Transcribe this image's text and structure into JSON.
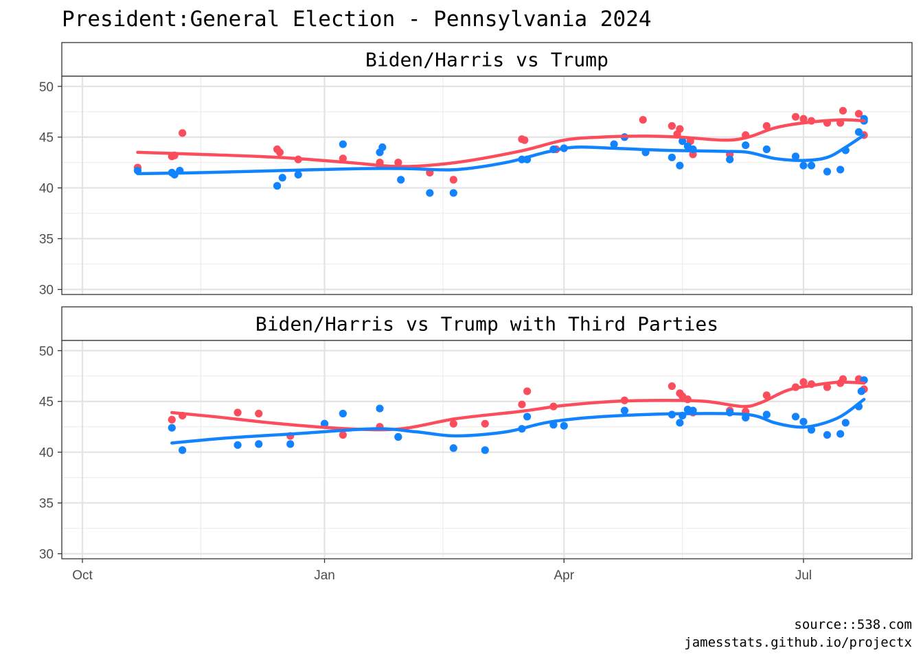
{
  "title": "President:General Election - Pennsylvania 2024",
  "caption": {
    "line1": "source::538.com",
    "line2": "jamesstats.github.io/projectx"
  },
  "colors": {
    "trump": "#fb4d5c",
    "biden_harris": "#1283ff"
  },
  "chart_data": [
    {
      "type": "scatter",
      "panel_title": "Biden/Harris vs Trump",
      "x_axis": {
        "type": "date",
        "ticks": [
          "Oct",
          "Jan",
          "Apr",
          "Jul"
        ]
      },
      "ylim": [
        29.5,
        51
      ],
      "yticks": [
        30,
        35,
        40,
        45,
        50
      ],
      "grid": true,
      "smooth_trend_lines": true,
      "series": [
        {
          "color": "#fb4d5c",
          "points": [
            [
              "2023-10-22",
              42.0
            ],
            [
              "2023-11-04",
              43.1
            ],
            [
              "2023-11-05",
              43.2
            ],
            [
              "2023-11-08",
              45.4
            ],
            [
              "2023-12-14",
              43.8
            ],
            [
              "2023-12-15",
              43.5
            ],
            [
              "2023-12-22",
              42.8
            ],
            [
              "2024-01-08",
              42.9
            ],
            [
              "2024-01-22",
              42.5
            ],
            [
              "2024-01-22",
              42.2
            ],
            [
              "2024-01-29",
              42.5
            ],
            [
              "2024-02-10",
              41.5
            ],
            [
              "2024-02-19",
              40.8
            ],
            [
              "2024-03-16",
              44.8
            ],
            [
              "2024-03-17",
              44.7
            ],
            [
              "2024-03-29",
              43.8
            ],
            [
              "2024-05-01",
              46.7
            ],
            [
              "2024-05-12",
              46.1
            ],
            [
              "2024-05-14",
              45.3
            ],
            [
              "2024-05-15",
              45.8
            ],
            [
              "2024-05-19",
              44.6
            ],
            [
              "2024-05-20",
              43.3
            ],
            [
              "2024-06-03",
              43.3
            ],
            [
              "2024-06-09",
              45.2
            ],
            [
              "2024-06-17",
              46.1
            ],
            [
              "2024-06-28",
              47.0
            ],
            [
              "2024-07-01",
              46.8
            ],
            [
              "2024-07-04",
              46.6
            ],
            [
              "2024-07-10",
              46.4
            ],
            [
              "2024-07-15",
              46.4
            ],
            [
              "2024-07-16",
              47.6
            ],
            [
              "2024-07-22",
              47.3
            ],
            [
              "2024-07-24",
              45.2
            ]
          ],
          "trend": [
            [
              "2023-10-22",
              43.5
            ],
            [
              "2023-11-15",
              43.3
            ],
            [
              "2023-12-15",
              43.0
            ],
            [
              "2024-01-10",
              42.5
            ],
            [
              "2024-01-30",
              42.1
            ],
            [
              "2024-02-20",
              42.5
            ],
            [
              "2024-03-15",
              43.6
            ],
            [
              "2024-04-01",
              44.7
            ],
            [
              "2024-04-15",
              45.0
            ],
            [
              "2024-05-01",
              45.1
            ],
            [
              "2024-05-15",
              45.0
            ],
            [
              "2024-06-01",
              44.7
            ],
            [
              "2024-06-10",
              45.0
            ],
            [
              "2024-06-20",
              45.9
            ],
            [
              "2024-07-01",
              46.4
            ],
            [
              "2024-07-15",
              46.7
            ],
            [
              "2024-07-24",
              46.6
            ]
          ]
        },
        {
          "color": "#1283ff",
          "points": [
            [
              "2023-10-22",
              41.7
            ],
            [
              "2023-11-04",
              41.5
            ],
            [
              "2023-11-05",
              41.3
            ],
            [
              "2023-11-07",
              41.7
            ],
            [
              "2023-12-14",
              40.2
            ],
            [
              "2023-12-16",
              41.0
            ],
            [
              "2023-12-22",
              41.3
            ],
            [
              "2024-01-08",
              44.3
            ],
            [
              "2024-01-22",
              43.5
            ],
            [
              "2024-01-23",
              44.0
            ],
            [
              "2024-01-30",
              40.8
            ],
            [
              "2024-02-10",
              39.5
            ],
            [
              "2024-02-19",
              39.5
            ],
            [
              "2024-03-16",
              42.8
            ],
            [
              "2024-03-18",
              42.8
            ],
            [
              "2024-03-28",
              43.8
            ],
            [
              "2024-04-01",
              43.9
            ],
            [
              "2024-04-20",
              44.3
            ],
            [
              "2024-04-24",
              45.0
            ],
            [
              "2024-05-02",
              43.5
            ],
            [
              "2024-05-12",
              43.0
            ],
            [
              "2024-05-15",
              42.2
            ],
            [
              "2024-05-16",
              44.6
            ],
            [
              "2024-05-18",
              44.1
            ],
            [
              "2024-05-20",
              43.8
            ],
            [
              "2024-06-03",
              42.8
            ],
            [
              "2024-06-09",
              44.2
            ],
            [
              "2024-06-17",
              43.8
            ],
            [
              "2024-06-28",
              43.1
            ],
            [
              "2024-07-01",
              42.2
            ],
            [
              "2024-07-04",
              42.2
            ],
            [
              "2024-07-10",
              41.6
            ],
            [
              "2024-07-15",
              41.8
            ],
            [
              "2024-07-17",
              43.7
            ],
            [
              "2024-07-22",
              45.5
            ],
            [
              "2024-07-24",
              46.6
            ],
            [
              "2024-07-24",
              46.8
            ]
          ],
          "trend": [
            [
              "2023-10-22",
              41.4
            ],
            [
              "2023-11-15",
              41.5
            ],
            [
              "2023-12-15",
              41.7
            ],
            [
              "2024-01-15",
              41.9
            ],
            [
              "2024-02-01",
              41.9
            ],
            [
              "2024-02-20",
              41.8
            ],
            [
              "2024-03-10",
              42.5
            ],
            [
              "2024-03-25",
              43.5
            ],
            [
              "2024-04-05",
              44.0
            ],
            [
              "2024-04-20",
              43.9
            ],
            [
              "2024-05-10",
              43.7
            ],
            [
              "2024-06-01",
              43.6
            ],
            [
              "2024-06-10",
              43.5
            ],
            [
              "2024-06-20",
              42.9
            ],
            [
              "2024-07-01",
              42.7
            ],
            [
              "2024-07-10",
              43.0
            ],
            [
              "2024-07-17",
              44.0
            ],
            [
              "2024-07-24",
              45.2
            ]
          ]
        }
      ]
    },
    {
      "type": "scatter",
      "panel_title": "Biden/Harris vs Trump with Third Parties",
      "x_axis": {
        "type": "date",
        "ticks": [
          "Oct",
          "Jan",
          "Apr",
          "Jul"
        ]
      },
      "ylim": [
        29.5,
        51
      ],
      "yticks": [
        30,
        35,
        40,
        45,
        50
      ],
      "grid": true,
      "smooth_trend_lines": true,
      "series": [
        {
          "color": "#fb4d5c",
          "points": [
            [
              "2023-11-04",
              43.2
            ],
            [
              "2023-11-08",
              43.6
            ],
            [
              "2023-11-29",
              43.9
            ],
            [
              "2023-12-07",
              43.8
            ],
            [
              "2023-12-19",
              41.6
            ],
            [
              "2024-01-01",
              42.8
            ],
            [
              "2024-01-08",
              41.7
            ],
            [
              "2024-01-22",
              42.5
            ],
            [
              "2024-01-29",
              41.5
            ],
            [
              "2024-02-19",
              42.8
            ],
            [
              "2024-03-02",
              42.8
            ],
            [
              "2024-03-16",
              44.7
            ],
            [
              "2024-03-18",
              46.0
            ],
            [
              "2024-03-28",
              44.5
            ],
            [
              "2024-04-24",
              45.1
            ],
            [
              "2024-05-12",
              46.5
            ],
            [
              "2024-05-15",
              45.8
            ],
            [
              "2024-05-16",
              45.5
            ],
            [
              "2024-05-18",
              45.2
            ],
            [
              "2024-05-20",
              43.9
            ],
            [
              "2024-06-03",
              44.1
            ],
            [
              "2024-06-09",
              44.0
            ],
            [
              "2024-06-17",
              45.6
            ],
            [
              "2024-06-28",
              46.4
            ],
            [
              "2024-07-01",
              46.9
            ],
            [
              "2024-07-04",
              46.7
            ],
            [
              "2024-07-10",
              46.4
            ],
            [
              "2024-07-15",
              46.8
            ],
            [
              "2024-07-16",
              47.2
            ],
            [
              "2024-07-22",
              47.2
            ],
            [
              "2024-07-24",
              46.2
            ]
          ],
          "trend": [
            [
              "2023-11-04",
              43.9
            ],
            [
              "2023-11-20",
              43.5
            ],
            [
              "2023-12-15",
              42.8
            ],
            [
              "2024-01-10",
              42.3
            ],
            [
              "2024-01-30",
              42.3
            ],
            [
              "2024-02-20",
              43.3
            ],
            [
              "2024-03-15",
              44.0
            ],
            [
              "2024-04-01",
              44.6
            ],
            [
              "2024-04-20",
              45.0
            ],
            [
              "2024-05-10",
              45.1
            ],
            [
              "2024-05-25",
              45.0
            ],
            [
              "2024-06-08",
              44.5
            ],
            [
              "2024-06-15",
              44.9
            ],
            [
              "2024-06-25",
              46.1
            ],
            [
              "2024-07-05",
              46.6
            ],
            [
              "2024-07-15",
              46.9
            ],
            [
              "2024-07-24",
              46.8
            ]
          ]
        },
        {
          "color": "#1283ff",
          "points": [
            [
              "2023-11-04",
              42.4
            ],
            [
              "2023-11-08",
              40.2
            ],
            [
              "2023-11-29",
              40.7
            ],
            [
              "2023-12-07",
              40.8
            ],
            [
              "2023-12-19",
              40.8
            ],
            [
              "2024-01-01",
              42.8
            ],
            [
              "2024-01-08",
              43.8
            ],
            [
              "2024-01-22",
              44.3
            ],
            [
              "2024-01-29",
              41.5
            ],
            [
              "2024-02-19",
              40.4
            ],
            [
              "2024-03-02",
              40.2
            ],
            [
              "2024-03-16",
              42.3
            ],
            [
              "2024-03-18",
              43.5
            ],
            [
              "2024-03-28",
              42.7
            ],
            [
              "2024-04-01",
              42.6
            ],
            [
              "2024-04-24",
              44.1
            ],
            [
              "2024-05-12",
              43.7
            ],
            [
              "2024-05-15",
              42.9
            ],
            [
              "2024-05-16",
              43.6
            ],
            [
              "2024-05-18",
              44.2
            ],
            [
              "2024-05-20",
              44.1
            ],
            [
              "2024-06-03",
              43.9
            ],
            [
              "2024-06-09",
              43.4
            ],
            [
              "2024-06-17",
              43.7
            ],
            [
              "2024-06-28",
              43.5
            ],
            [
              "2024-07-01",
              43.0
            ],
            [
              "2024-07-04",
              42.2
            ],
            [
              "2024-07-10",
              41.7
            ],
            [
              "2024-07-15",
              41.8
            ],
            [
              "2024-07-17",
              42.9
            ],
            [
              "2024-07-22",
              44.5
            ],
            [
              "2024-07-23",
              46.0
            ],
            [
              "2024-07-24",
              47.1
            ]
          ],
          "trend": [
            [
              "2023-11-04",
              40.9
            ],
            [
              "2023-11-25",
              41.4
            ],
            [
              "2023-12-20",
              41.8
            ],
            [
              "2024-01-20",
              42.3
            ],
            [
              "2024-02-05",
              42.0
            ],
            [
              "2024-02-20",
              41.6
            ],
            [
              "2024-03-10",
              42.0
            ],
            [
              "2024-03-25",
              42.9
            ],
            [
              "2024-04-10",
              43.4
            ],
            [
              "2024-05-01",
              43.7
            ],
            [
              "2024-05-20",
              43.8
            ],
            [
              "2024-06-10",
              43.7
            ],
            [
              "2024-06-20",
              42.9
            ],
            [
              "2024-06-28",
              42.5
            ],
            [
              "2024-07-05",
              42.6
            ],
            [
              "2024-07-15",
              43.5
            ],
            [
              "2024-07-24",
              45.2
            ]
          ]
        }
      ]
    }
  ]
}
